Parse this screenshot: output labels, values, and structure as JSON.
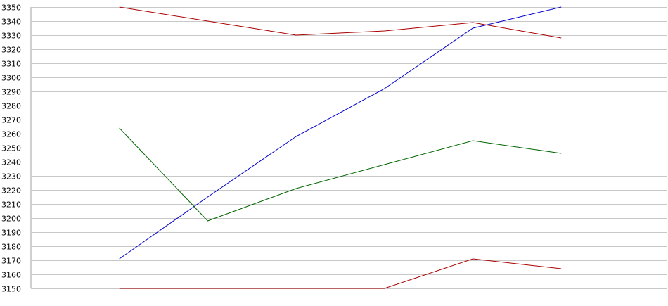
{
  "chart_data": {
    "type": "line",
    "title": "",
    "xlabel": "",
    "ylabel": "",
    "x": [
      1,
      2,
      3,
      4,
      5,
      6
    ],
    "xlim": [
      0,
      7.2
    ],
    "ylim": [
      3150,
      3350
    ],
    "y_ticks": [
      "3150",
      "3160",
      "3170",
      "3180",
      "3190",
      "3200",
      "3210",
      "3220",
      "3230",
      "3240",
      "3250",
      "3260",
      "3270",
      "3280",
      "3290",
      "3300",
      "3310",
      "3320",
      "3330",
      "3340",
      "3350"
    ],
    "grid": true,
    "legend": "none",
    "series": [
      {
        "color": "#0000cc",
        "values": [
          3171,
          3215,
          3258,
          3292,
          3335,
          3350
        ]
      },
      {
        "color": "#aa0000",
        "values": [
          3350,
          3340,
          3330,
          3333,
          3339,
          3328
        ]
      },
      {
        "color": "#006600",
        "values": [
          3264,
          3198,
          3221,
          3238,
          3255,
          3246
        ]
      },
      {
        "color": "#aa0000",
        "values": [
          3150,
          3150,
          3150,
          3150,
          3171,
          3164
        ]
      }
    ]
  }
}
